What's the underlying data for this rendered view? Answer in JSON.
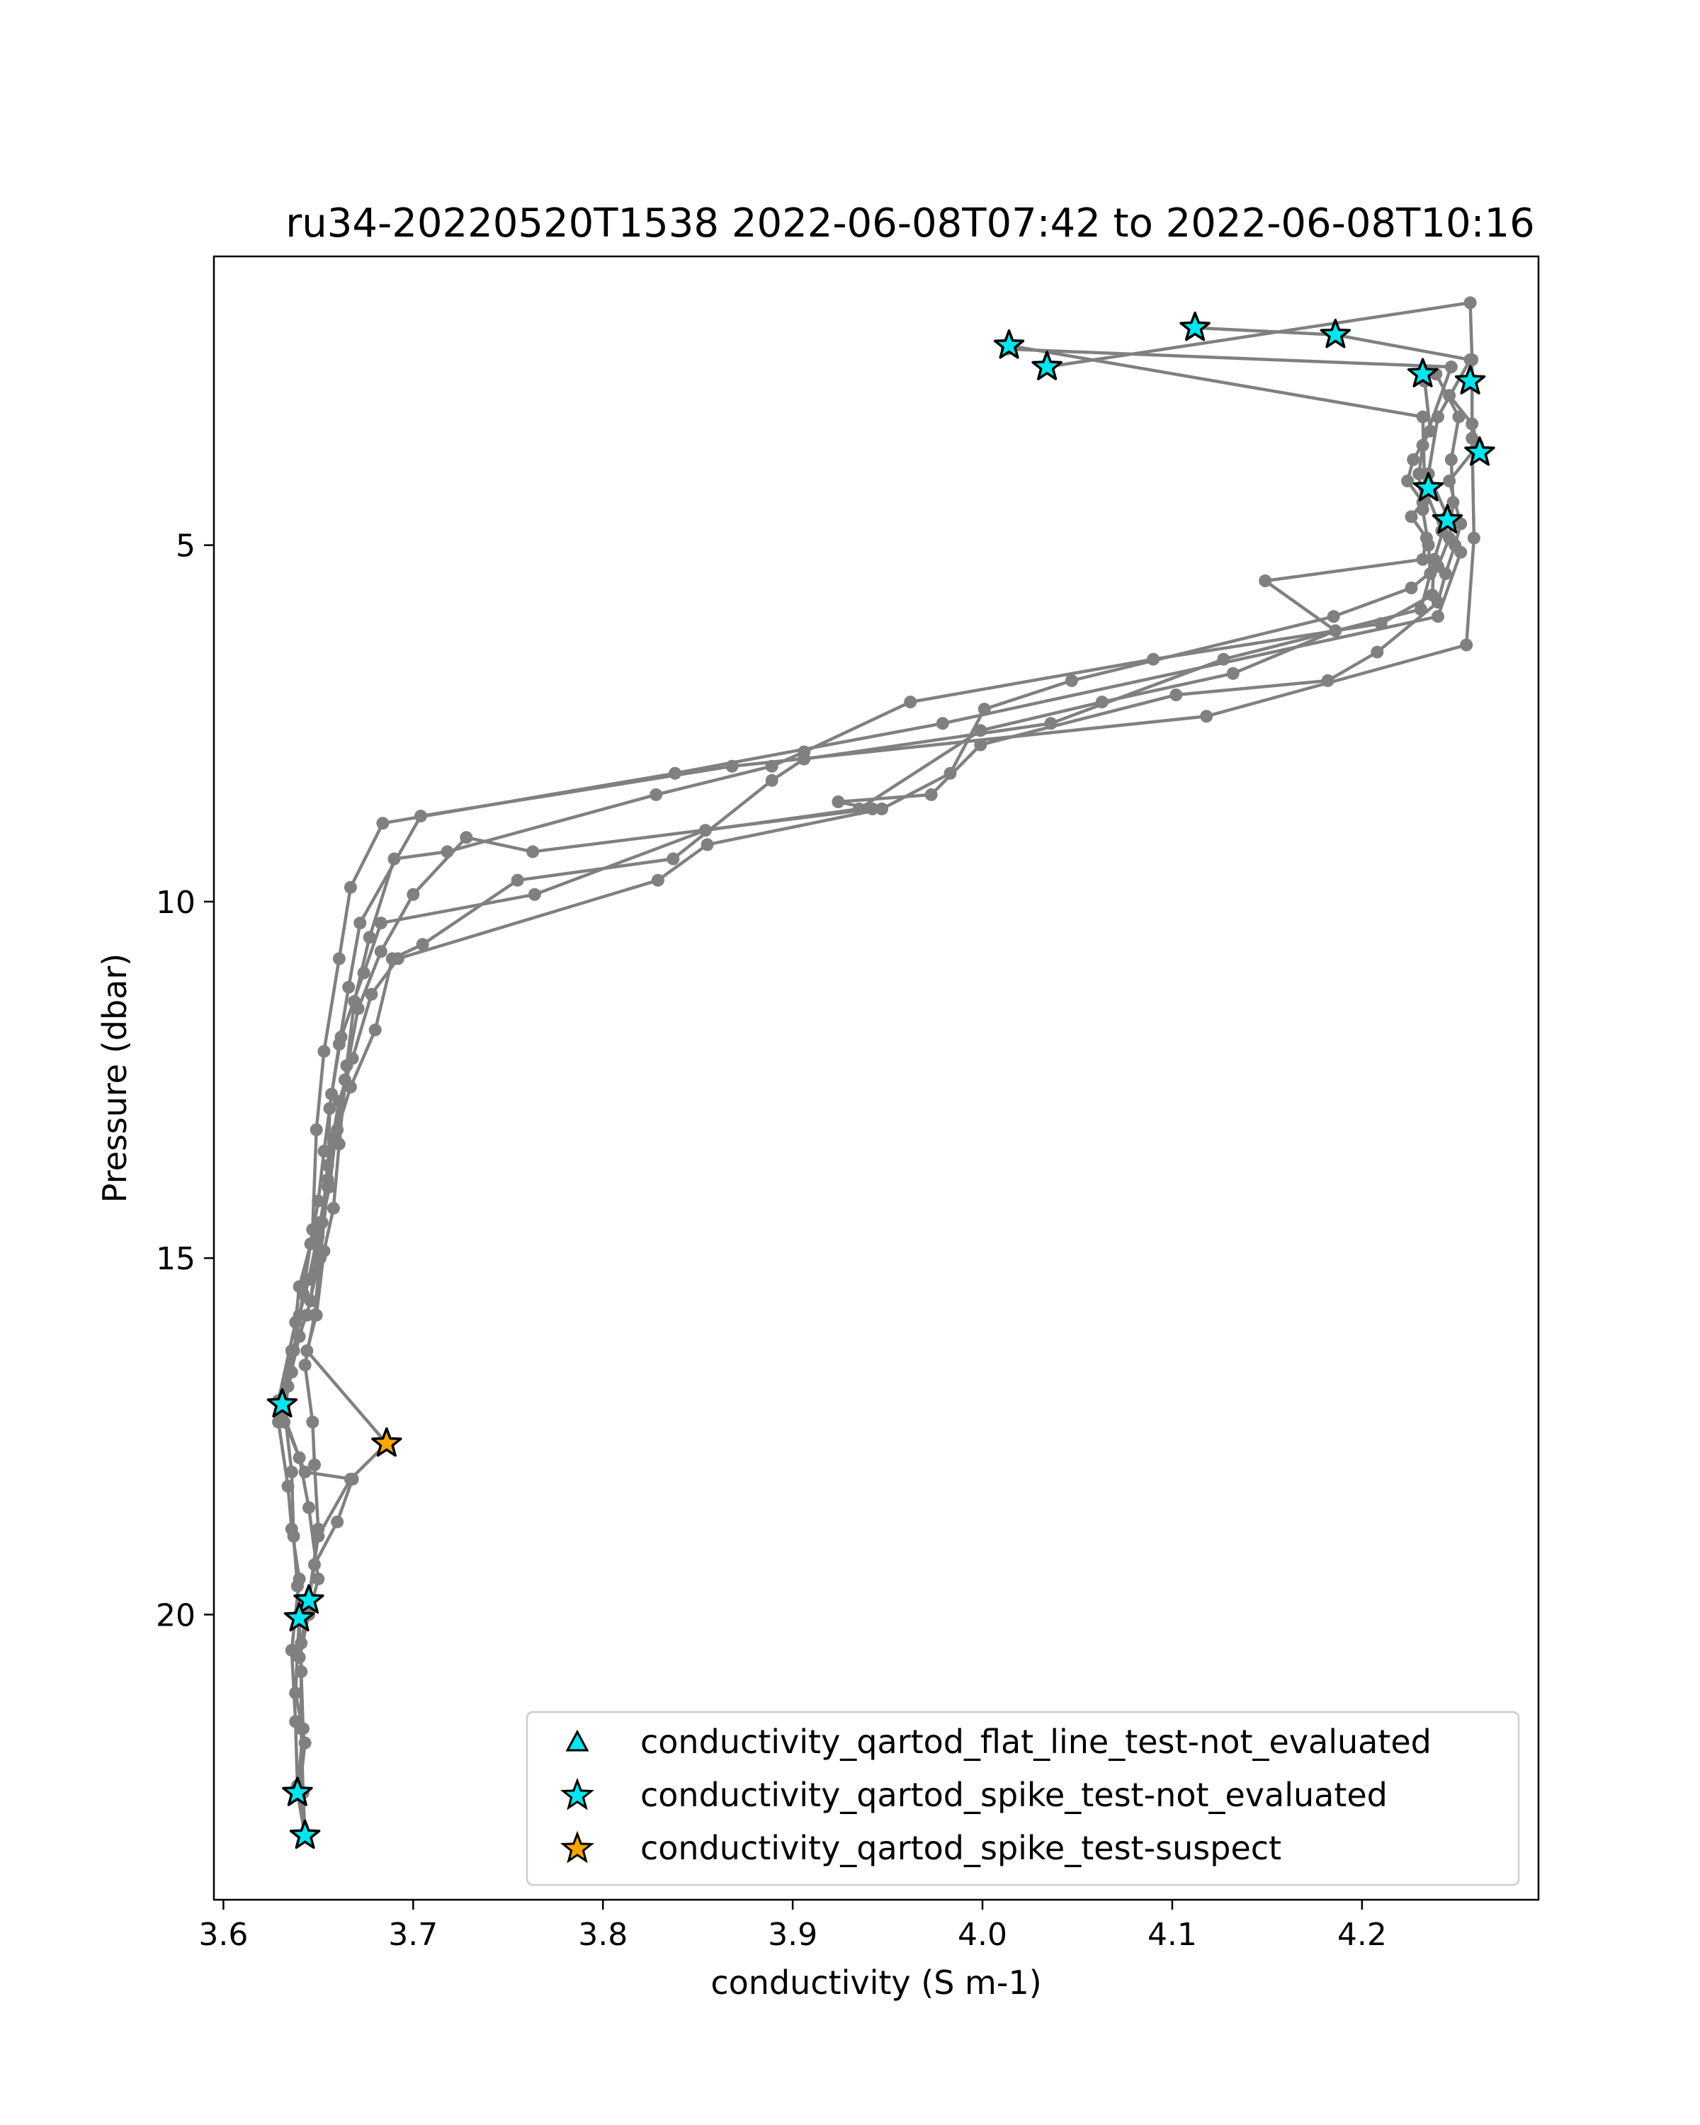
{
  "chart_data": {
    "type": "scatter",
    "title": "ru34-20220520T1538 2022-06-08T07:42 to 2022-06-08T10:16",
    "xlabel": "conductivity (S m-1)",
    "ylabel": "Pressure (dbar)",
    "xlim": [
      3.595,
      4.293
    ],
    "ylim": [
      24.0,
      0.95
    ],
    "y_inverted": true,
    "grid": false,
    "legend_position": "lower right",
    "xticks": [
      3.6,
      3.7,
      3.8,
      3.9,
      4.0,
      4.1,
      4.2
    ],
    "xtick_labels": [
      "3.6",
      "3.7",
      "3.8",
      "3.9",
      "4.0",
      "4.1",
      "4.2"
    ],
    "yticks": [
      5,
      10,
      15,
      20
    ],
    "ytick_labels": [
      "5",
      "10",
      "15",
      "20"
    ],
    "colors": {
      "profile": "#808080",
      "not_evaluated": "#00e5ee",
      "suspect": "#ffa500",
      "marker_edge": "#000000"
    },
    "profiles": [
      [
        [
          4.014,
          2.2
        ],
        [
          4.232,
          3.2
        ],
        [
          4.233,
          4.2
        ],
        [
          4.242,
          4.8
        ],
        [
          4.252,
          5.1
        ],
        [
          4.24,
          6.0
        ],
        [
          3.979,
          7.5
        ],
        [
          3.838,
          8.2
        ],
        [
          3.684,
          8.9
        ],
        [
          3.667,
          9.8
        ],
        [
          3.661,
          10.8
        ],
        [
          3.653,
          12.1
        ],
        [
          3.649,
          13.2
        ],
        [
          3.647,
          14.6
        ],
        [
          3.642,
          15.5
        ],
        [
          3.637,
          16.3
        ],
        [
          3.632,
          17.1
        ],
        [
          3.636,
          18.0
        ],
        [
          3.637,
          18.9
        ],
        [
          3.639,
          19.6
        ],
        [
          3.64,
          20.1
        ],
        [
          3.641,
          20.8
        ],
        [
          3.642,
          21.6
        ],
        [
          3.639,
          22.5
        ],
        [
          3.643,
          23.1
        ]
      ],
      [
        [
          4.034,
          2.5
        ],
        [
          4.257,
          1.6
        ],
        [
          4.258,
          2.4
        ],
        [
          4.258,
          3.5
        ],
        [
          4.259,
          4.9
        ],
        [
          4.255,
          6.4
        ],
        [
          4.118,
          7.4
        ],
        [
          3.868,
          8.1
        ],
        [
          3.704,
          8.8
        ],
        [
          3.672,
          10.3
        ],
        [
          3.666,
          11.2
        ],
        [
          3.661,
          12.0
        ],
        [
          3.656,
          12.9
        ],
        [
          3.655,
          14.0
        ],
        [
          3.651,
          15.0
        ],
        [
          3.648,
          15.8
        ],
        [
          3.643,
          16.5
        ],
        [
          3.647,
          17.3
        ],
        [
          3.648,
          17.9
        ],
        [
          3.65,
          18.8
        ],
        [
          3.645,
          19.8
        ],
        [
          3.641,
          20.4
        ],
        [
          3.641,
          21.6
        ],
        [
          3.642,
          22.5
        ],
        [
          3.643,
          23.1
        ]
      ],
      [
        [
          4.112,
          1.95
        ],
        [
          4.186,
          2.05
        ],
        [
          4.257,
          2.4
        ],
        [
          4.24,
          3.2
        ],
        [
          4.235,
          4.0
        ],
        [
          4.245,
          4.6
        ],
        [
          4.238,
          5.2
        ],
        [
          4.237,
          5.7
        ],
        [
          4.21,
          6.1
        ],
        [
          4.09,
          6.6
        ],
        [
          3.962,
          7.2
        ],
        [
          3.906,
          7.9
        ],
        [
          3.889,
          8.1
        ],
        [
          3.828,
          8.5
        ],
        [
          3.718,
          9.3
        ],
        [
          3.69,
          9.4
        ],
        [
          3.677,
          10.5
        ],
        [
          3.669,
          11.4
        ],
        [
          3.665,
          12.3
        ],
        [
          3.661,
          13.4
        ],
        [
          3.658,
          14.3
        ],
        [
          3.653,
          14.9
        ],
        [
          3.649,
          15.8
        ],
        [
          3.644,
          16.3
        ],
        [
          3.686,
          17.6
        ],
        [
          3.667,
          18.1
        ],
        [
          3.65,
          18.9
        ],
        [
          3.645,
          19.8
        ],
        [
          3.64,
          20.0
        ],
        [
          3.638,
          21.1
        ],
        [
          3.643,
          21.8
        ],
        [
          3.64,
          22.5
        ],
        [
          3.643,
          23.1
        ]
      ],
      [
        [
          4.013,
          2.25
        ],
        [
          4.247,
          2.5
        ],
        [
          4.232,
          3.6
        ],
        [
          4.23,
          4.0
        ],
        [
          4.232,
          4.5
        ],
        [
          4.235,
          5.0
        ],
        [
          4.236,
          5.4
        ],
        [
          4.231,
          5.9
        ],
        [
          4.127,
          6.6
        ],
        [
          4.036,
          7.5
        ],
        [
          3.906,
          8.0
        ],
        [
          3.889,
          8.3
        ],
        [
          3.837,
          9.4
        ],
        [
          3.755,
          9.7
        ],
        [
          3.705,
          10.6
        ],
        [
          3.689,
          10.8
        ],
        [
          3.68,
          11.8
        ],
        [
          3.667,
          12.6
        ],
        [
          3.66,
          13.2
        ],
        [
          3.655,
          13.9
        ],
        [
          3.651,
          14.5
        ],
        [
          3.645,
          15.3
        ],
        [
          3.64,
          15.8
        ],
        [
          3.636,
          16.6
        ],
        [
          3.631,
          17.2
        ],
        [
          3.643,
          18.0
        ],
        [
          3.668,
          18.1
        ],
        [
          3.66,
          18.7
        ],
        [
          3.648,
          19.3
        ],
        [
          3.645,
          19.8
        ]
      ],
      [
        [
          4.233,
          2.7
        ],
        [
          4.236,
          3.4
        ],
        [
          4.227,
          3.8
        ],
        [
          4.224,
          4.1
        ],
        [
          4.232,
          4.4
        ],
        [
          4.226,
          4.6
        ],
        [
          4.234,
          4.9
        ],
        [
          4.232,
          5.2
        ],
        [
          4.149,
          5.5
        ],
        [
          4.186,
          6.2
        ],
        [
          4.132,
          6.8
        ],
        [
          4.063,
          7.2
        ],
        [
          3.999,
          7.6
        ],
        [
          3.935,
          8.7
        ],
        [
          3.854,
          9.0
        ],
        [
          3.764,
          9.9
        ],
        [
          3.683,
          10.3
        ],
        [
          3.674,
          11.0
        ],
        [
          3.662,
          11.9
        ],
        [
          3.657,
          12.7
        ],
        [
          3.653,
          13.5
        ],
        [
          3.65,
          14.2
        ],
        [
          3.646,
          14.8
        ],
        [
          3.64,
          15.4
        ],
        [
          3.638,
          15.9
        ],
        [
          3.629,
          17.0
        ],
        [
          3.64,
          17.8
        ],
        [
          3.645,
          18.5
        ],
        [
          3.65,
          19.5
        ],
        [
          3.645,
          20.0
        ],
        [
          3.64,
          20.6
        ]
      ],
      [
        [
          4.239,
          2.6
        ],
        [
          4.251,
          3.2
        ],
        [
          4.247,
          3.8
        ],
        [
          4.248,
          4.4
        ],
        [
          4.246,
          4.9
        ],
        [
          4.24,
          5.3
        ],
        [
          4.226,
          5.6
        ],
        [
          4.185,
          6.0
        ],
        [
          4.047,
          6.9
        ],
        [
          4.001,
          7.3
        ],
        [
          3.983,
          8.2
        ],
        [
          3.947,
          8.7
        ],
        [
          3.855,
          9.2
        ],
        [
          3.829,
          9.7
        ],
        [
          3.692,
          10.8
        ],
        [
          3.678,
          11.3
        ],
        [
          3.668,
          12.2
        ],
        [
          3.661,
          12.8
        ],
        [
          3.655,
          13.7
        ],
        [
          3.652,
          14.5
        ],
        [
          3.649,
          15.2
        ],
        [
          3.644,
          15.8
        ],
        [
          3.636,
          16.3
        ],
        [
          3.629,
          17.3
        ],
        [
          3.634,
          18.2
        ],
        [
          3.636,
          18.8
        ],
        [
          3.64,
          19.5
        ],
        [
          3.636,
          20.5
        ],
        [
          3.638,
          21.5
        ],
        [
          3.639,
          22.4
        ]
      ],
      [
        [
          4.246,
          2.9
        ],
        [
          4.258,
          3.3
        ],
        [
          4.261,
          3.6
        ],
        [
          4.246,
          4.1
        ],
        [
          4.252,
          4.7
        ],
        [
          4.249,
          5.0
        ],
        [
          4.244,
          5.4
        ],
        [
          4.24,
          5.8
        ],
        [
          4.208,
          6.5
        ],
        [
          4.182,
          6.9
        ],
        [
          4.102,
          7.1
        ],
        [
          3.999,
          7.8
        ],
        [
          3.973,
          8.5
        ],
        [
          3.924,
          8.6
        ],
        [
          3.942,
          8.7
        ],
        [
          3.763,
          9.3
        ],
        [
          3.728,
          9.1
        ],
        [
          3.7,
          9.9
        ],
        [
          3.683,
          10.7
        ],
        [
          3.671,
          11.5
        ],
        [
          3.664,
          12.5
        ],
        [
          3.659,
          13.3
        ],
        [
          3.656,
          14.0
        ],
        [
          3.65,
          14.7
        ],
        [
          3.646,
          15.6
        ],
        [
          3.64,
          16.1
        ],
        [
          3.634,
          16.8
        ],
        [
          3.632,
          17.3
        ]
      ]
    ],
    "flagged_points": [
      {
        "x": 4.014,
        "y": 2.2,
        "flag": "conductivity_qartod_spike_test-not_evaluated"
      },
      {
        "x": 4.034,
        "y": 2.5,
        "flag": "conductivity_qartod_spike_test-not_evaluated"
      },
      {
        "x": 4.112,
        "y": 1.95,
        "flag": "conductivity_qartod_spike_test-not_evaluated"
      },
      {
        "x": 4.186,
        "y": 2.05,
        "flag": "conductivity_qartod_spike_test-not_evaluated"
      },
      {
        "x": 4.232,
        "y": 2.6,
        "flag": "conductivity_qartod_spike_test-not_evaluated"
      },
      {
        "x": 4.257,
        "y": 2.7,
        "flag": "conductivity_qartod_spike_test-not_evaluated"
      },
      {
        "x": 4.262,
        "y": 3.7,
        "flag": "conductivity_qartod_spike_test-not_evaluated"
      },
      {
        "x": 4.235,
        "y": 4.2,
        "flag": "conductivity_qartod_spike_test-not_evaluated"
      },
      {
        "x": 4.245,
        "y": 4.65,
        "flag": "conductivity_qartod_spike_test-not_evaluated"
      },
      {
        "x": 3.631,
        "y": 17.05,
        "flag": "conductivity_qartod_spike_test-not_evaluated"
      },
      {
        "x": 3.686,
        "y": 17.6,
        "flag": "conductivity_qartod_spike_test-suspect"
      },
      {
        "x": 3.645,
        "y": 19.8,
        "flag": "conductivity_qartod_spike_test-not_evaluated"
      },
      {
        "x": 3.64,
        "y": 20.05,
        "flag": "conductivity_qartod_spike_test-not_evaluated"
      },
      {
        "x": 3.639,
        "y": 22.5,
        "flag": "conductivity_qartod_spike_test-not_evaluated"
      },
      {
        "x": 3.643,
        "y": 23.1,
        "flag": "conductivity_qartod_spike_test-not_evaluated"
      }
    ],
    "legend": [
      {
        "label": "conductivity_qartod_flat_line_test-not_evaluated",
        "marker": "triangle",
        "color": "#00e5ee"
      },
      {
        "label": "conductivity_qartod_spike_test-not_evaluated",
        "marker": "star",
        "color": "#00e5ee"
      },
      {
        "label": "conductivity_qartod_spike_test-suspect",
        "marker": "star",
        "color": "#ffa500"
      }
    ]
  }
}
